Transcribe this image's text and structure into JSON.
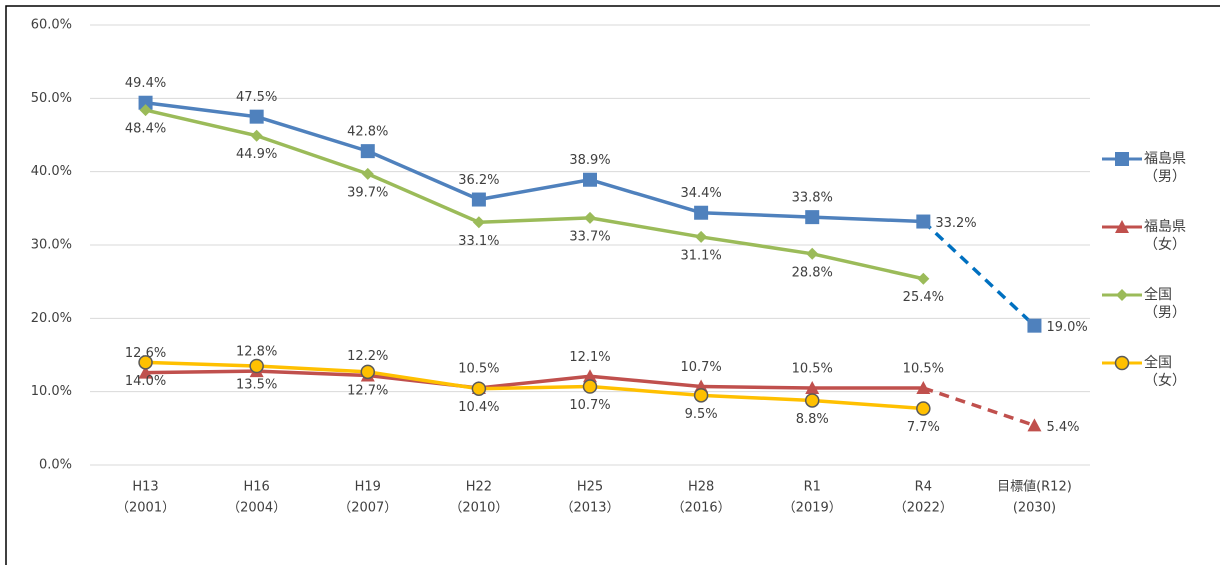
{
  "chart_data": {
    "type": "line",
    "categories": [
      [
        "H13",
        "（2001）"
      ],
      [
        "H16",
        "（2004）"
      ],
      [
        "H19",
        "（2007）"
      ],
      [
        "H22",
        "（2010）"
      ],
      [
        "H25",
        "（2013）"
      ],
      [
        "H28",
        "（2016）"
      ],
      [
        "R1",
        "（2019）"
      ],
      [
        "R4",
        "（2022）"
      ],
      [
        "目標値(R12)",
        "(2030)"
      ]
    ],
    "series": [
      {
        "name": "福島県（男）",
        "color": "#4f81bd",
        "marker": "square",
        "values": [
          49.4,
          47.5,
          42.8,
          36.2,
          38.9,
          34.4,
          33.8,
          33.2,
          19.0
        ],
        "value_labels": [
          "49.4%",
          "47.5%",
          "42.8%",
          "36.2%",
          "38.9%",
          "34.4%",
          "33.8%",
          "33.2%",
          "19.0%"
        ]
      },
      {
        "name": "福島県（女）",
        "color": "#c0504d",
        "marker": "triangle",
        "values": [
          12.6,
          12.8,
          12.2,
          10.5,
          12.1,
          10.7,
          10.5,
          10.5,
          5.4
        ],
        "value_labels": [
          "12.6%",
          "12.8%",
          "12.2%",
          "10.5%",
          "12.1%",
          "10.7%",
          "10.5%",
          "10.5%",
          "5.4%"
        ]
      },
      {
        "name": "全国（男）",
        "color": "#9bbb59",
        "marker": "diamond",
        "values": [
          48.4,
          44.9,
          39.7,
          33.1,
          33.7,
          31.1,
          28.8,
          25.4,
          null
        ],
        "value_labels": [
          "48.4%",
          "44.9%",
          "39.7%",
          "33.1%",
          "33.7%",
          "31.1%",
          "28.8%",
          "25.4%",
          null
        ]
      },
      {
        "name": "全国（女）",
        "color": "#ffc000",
        "marker": "circle",
        "values": [
          14.0,
          13.5,
          12.7,
          10.4,
          10.7,
          9.5,
          8.8,
          7.7,
          null
        ],
        "value_labels": [
          "14.0%",
          "13.5%",
          "12.7%",
          "10.4%",
          "10.7%",
          "9.5%",
          "8.8%",
          "7.7%",
          null
        ]
      }
    ],
    "ylim": [
      0,
      60
    ],
    "yticks": [
      {
        "value": 0,
        "label": "0.0%"
      },
      {
        "value": 10,
        "label": "10.0%"
      },
      {
        "value": 20,
        "label": "20.0%"
      },
      {
        "value": 30,
        "label": "30.0%"
      },
      {
        "value": 40,
        "label": "40.0%"
      },
      {
        "value": 50,
        "label": "50.0%"
      },
      {
        "value": 60,
        "label": "60.0%"
      }
    ],
    "grid": true
  }
}
